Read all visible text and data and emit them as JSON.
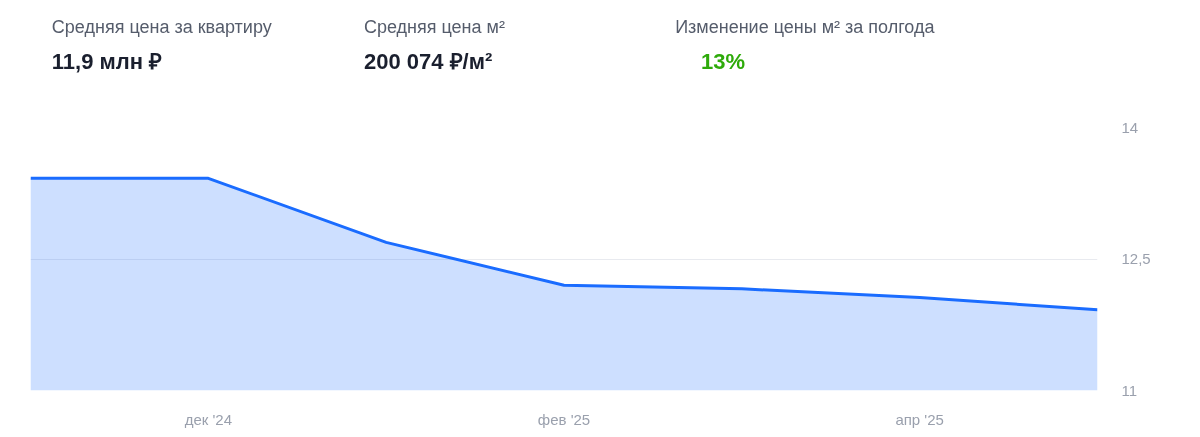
{
  "chart_data": {
    "type": "area",
    "annotations": [
      "Средняя цена за квартиру",
      "11,9 млн ₽",
      "Средняя цена м²",
      "200 074 ₽/м²",
      "Изменение цены м² за полгода",
      "13%"
    ],
    "categories": [
      null,
      "дек '24",
      null,
      "фев '25",
      null,
      "апр '25",
      null
    ],
    "series": [
      {
        "color": "#1a6cff",
        "values": [
          13.42,
          13.42,
          12.69,
          12.2,
          12.16,
          12.06,
          11.92
        ]
      }
    ],
    "ylim": [
      11,
      14
    ],
    "yticks": [
      11,
      {
        "value": 12.5,
        "label": "12,5"
      },
      14
    ],
    "grid": "y"
  }
}
